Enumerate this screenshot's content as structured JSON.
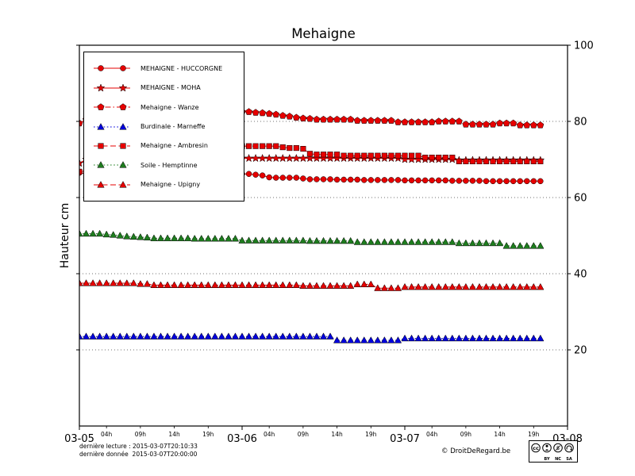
{
  "title": "Mehaigne",
  "ylabel": "Hauteur cm",
  "footer": {
    "line1": "dernière lecture : 2015-03-07T20:10:33",
    "line2": "dernière donnée  2015-03-07T20:00:00",
    "copyright": "© DroitDeRegard.be",
    "cc_badge_labels": [
      "BY",
      "NC",
      "SA"
    ]
  },
  "chart_data": {
    "type": "line",
    "title": "Mehaigne",
    "xlabel": "",
    "ylabel": "Hauteur cm",
    "x_unit": "hours since 2015-03-05 00:00",
    "xlim": [
      0,
      72
    ],
    "ylim": [
      0,
      100
    ],
    "x_start": 0,
    "x_step": 1,
    "grid": "horizontal dotted",
    "legend_position": "upper left",
    "y_ticks": [
      20,
      40,
      60,
      80,
      100
    ],
    "x_major_ticks": [
      {
        "x": 0,
        "label": "03-05"
      },
      {
        "x": 24,
        "label": "03-06"
      },
      {
        "x": 48,
        "label": "03-07"
      },
      {
        "x": 72,
        "label": "03-08"
      }
    ],
    "x_minor_ticks": [
      {
        "x": 4,
        "label": "04h"
      },
      {
        "x": 9,
        "label": "09h"
      },
      {
        "x": 14,
        "label": "14h"
      },
      {
        "x": 19,
        "label": "19h"
      },
      {
        "x": 28,
        "label": "04h"
      },
      {
        "x": 33,
        "label": "09h"
      },
      {
        "x": 38,
        "label": "14h"
      },
      {
        "x": 43,
        "label": "19h"
      },
      {
        "x": 52,
        "label": "04h"
      },
      {
        "x": 57,
        "label": "09h"
      },
      {
        "x": 62,
        "label": "14h"
      },
      {
        "x": 67,
        "label": "19h"
      }
    ],
    "series": [
      {
        "key": "huccorgne",
        "name": "MEHAIGNE - HUCCORGNE",
        "color": "#e60000",
        "linestyle": "solid",
        "marker": "circle",
        "values": [
          66.5,
          66.3,
          66.3,
          66.3,
          66.3,
          66.3,
          66.3,
          66.3,
          66.3,
          66.3,
          66.3,
          66.3,
          66.3,
          66.3,
          66.3,
          66.3,
          66.3,
          66.3,
          66.3,
          66.3,
          66.3,
          66.3,
          66.3,
          66.3,
          66.2,
          66.2,
          66.0,
          65.8,
          65.3,
          65.2,
          65.2,
          65.2,
          65.2,
          65.0,
          64.8,
          64.8,
          64.8,
          64.8,
          64.7,
          64.7,
          64.7,
          64.7,
          64.6,
          64.6,
          64.6,
          64.6,
          64.6,
          64.6,
          64.5,
          64.5,
          64.5,
          64.5,
          64.5,
          64.5,
          64.5,
          64.4,
          64.4,
          64.4,
          64.4,
          64.4,
          64.3,
          64.3,
          64.3,
          64.3,
          64.3,
          64.3,
          64.3,
          64.3,
          64.3
        ]
      },
      {
        "key": "moha",
        "name": "MEHAIGNE - MOHA",
        "color": "#e60000",
        "linestyle": "solid",
        "marker": "star",
        "values": [
          69.0,
          70,
          70,
          70,
          70,
          70,
          70,
          70,
          70,
          70,
          70,
          70,
          70,
          70,
          70,
          70,
          70,
          70,
          70,
          70,
          70,
          70,
          70,
          70,
          70.3,
          70.3,
          70.3,
          70.3,
          70.3,
          70.3,
          70.3,
          70.3,
          70.3,
          70.3,
          70.3,
          70.3,
          70.3,
          70.3,
          70.3,
          70.3,
          70.3,
          70.3,
          70.3,
          70.3,
          70.3,
          70.3,
          70.3,
          70.3,
          70,
          70,
          70,
          70,
          70,
          70,
          70,
          70,
          69.8,
          69.8,
          69.8,
          69.8,
          69.8,
          69.8,
          69.8,
          69.8,
          69.8,
          69.8,
          69.8,
          69.8,
          69.8
        ]
      },
      {
        "key": "wanze",
        "name": "Mehaigne - Wanze",
        "color": "#e60000",
        "linestyle": "dashdot",
        "marker": "pentagon",
        "values": [
          79.5,
          80.5,
          80.5,
          80.5,
          80.5,
          80.5,
          80.5,
          80.5,
          80.5,
          80.5,
          80.5,
          80.5,
          82,
          82,
          82,
          82,
          82,
          82,
          82,
          82,
          82,
          82,
          82,
          82,
          82.5,
          82.5,
          82.3,
          82.2,
          82,
          81.8,
          81.5,
          81.3,
          81,
          80.8,
          80.7,
          80.5,
          80.5,
          80.5,
          80.5,
          80.5,
          80.5,
          80.2,
          80.2,
          80.2,
          80.2,
          80.2,
          80.2,
          79.8,
          79.8,
          79.8,
          79.8,
          79.8,
          79.8,
          80,
          80,
          80,
          80,
          79.2,
          79.2,
          79.2,
          79.2,
          79.2,
          79.5,
          79.5,
          79.5,
          79,
          79,
          79,
          79
        ]
      },
      {
        "key": "marneffe",
        "name": "Burdinale - Marneffe",
        "color": "#0000dd",
        "linestyle": "dotted",
        "marker": "triangle",
        "values": [
          23.5,
          23.5,
          23.5,
          23.5,
          23.5,
          23.5,
          23.5,
          23.5,
          23.5,
          23.5,
          23.5,
          23.5,
          23.5,
          23.5,
          23.5,
          23.5,
          23.5,
          23.5,
          23.5,
          23.5,
          23.5,
          23.5,
          23.5,
          23.5,
          23.5,
          23.5,
          23.5,
          23.5,
          23.5,
          23.5,
          23.5,
          23.5,
          23.5,
          23.5,
          23.5,
          23.5,
          23.5,
          23.5,
          22.5,
          22.5,
          22.5,
          22.5,
          22.5,
          22.5,
          22.5,
          22.5,
          22.5,
          22.5,
          23,
          23,
          23,
          23,
          23,
          23,
          23,
          23,
          23,
          23,
          23,
          23,
          23,
          23,
          23,
          23,
          23,
          23,
          23,
          23,
          23
        ]
      },
      {
        "key": "ambresin",
        "name": "Mehaigne - Ambresin",
        "color": "#e60000",
        "linestyle": "dashed",
        "marker": "square",
        "values": [
          66.8,
          67,
          67.3,
          67.6,
          67.9,
          68.2,
          68.4,
          68.7,
          69,
          69.3,
          69.6,
          69.8,
          70.1,
          70.4,
          70.7,
          71,
          71.2,
          71.5,
          71.8,
          72.1,
          72.4,
          72.6,
          72.9,
          73.2,
          73.5,
          73.5,
          73.5,
          73.5,
          73.5,
          73.5,
          73.2,
          73,
          73,
          72.8,
          71.5,
          71.3,
          71.3,
          71.3,
          71.3,
          71,
          71,
          71,
          71,
          71,
          71,
          71,
          71,
          71,
          71,
          71,
          71,
          70.5,
          70.5,
          70.5,
          70.5,
          70.5,
          69.5,
          69.5,
          69.5,
          69.5,
          69.5,
          69.5,
          69.5,
          69.5,
          69.5,
          69.5,
          69.5,
          69.5,
          69.5
        ]
      },
      {
        "key": "hemptinne",
        "name": "Soile - Hemptinne",
        "color": "#1e7d1e",
        "linestyle": "dotted",
        "marker": "triangle",
        "values": [
          50.5,
          50.5,
          50.5,
          50.5,
          50.3,
          50.2,
          50,
          49.8,
          49.7,
          49.6,
          49.5,
          49.3,
          49.3,
          49.3,
          49.3,
          49.3,
          49.3,
          49.2,
          49.2,
          49.2,
          49.2,
          49.2,
          49.2,
          49.2,
          48.7,
          48.7,
          48.7,
          48.7,
          48.7,
          48.7,
          48.7,
          48.7,
          48.7,
          48.7,
          48.6,
          48.6,
          48.6,
          48.6,
          48.6,
          48.6,
          48.6,
          48.3,
          48.3,
          48.3,
          48.3,
          48.3,
          48.3,
          48.3,
          48.3,
          48.3,
          48.3,
          48.3,
          48.3,
          48.3,
          48.3,
          48.3,
          48,
          48,
          48,
          48,
          48,
          48,
          48,
          47.3,
          47.3,
          47.3,
          47.3,
          47.3,
          47.3
        ]
      },
      {
        "key": "upigny",
        "name": "Mehaigne - Upigny",
        "color": "#e60000",
        "linestyle": "dashed",
        "marker": "triangle",
        "values": [
          37.5,
          37.5,
          37.5,
          37.5,
          37.5,
          37.5,
          37.5,
          37.5,
          37.5,
          37.3,
          37.3,
          37,
          37,
          37,
          37,
          37,
          37,
          37,
          37,
          37,
          37,
          37,
          37,
          37,
          37,
          37,
          37,
          37,
          37,
          37,
          37,
          37,
          37,
          36.8,
          36.8,
          36.8,
          36.8,
          36.8,
          36.8,
          36.8,
          36.8,
          37.2,
          37.2,
          37.2,
          36.2,
          36.2,
          36.2,
          36.2,
          36.5,
          36.5,
          36.5,
          36.5,
          36.5,
          36.5,
          36.5,
          36.5,
          36.5,
          36.5,
          36.5,
          36.5,
          36.5,
          36.5,
          36.5,
          36.5,
          36.5,
          36.5,
          36.5,
          36.5,
          36.5
        ]
      }
    ]
  }
}
